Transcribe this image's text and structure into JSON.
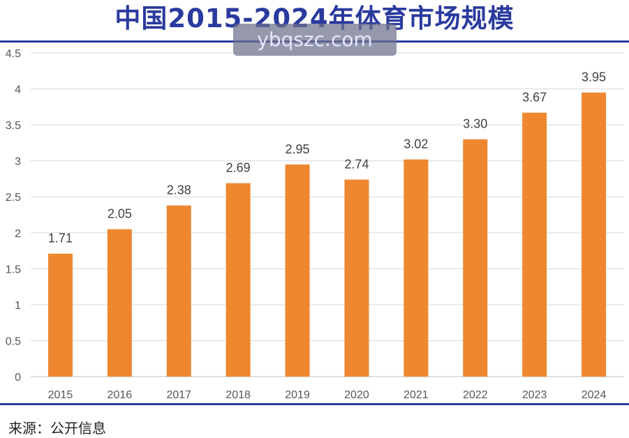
{
  "header": {
    "title": "中国2015-2024年体育市场规模",
    "watermark": "ybqszc.com"
  },
  "footer": {
    "source": "来源：公开信息"
  },
  "colors": {
    "bar": "#ee8730",
    "title": "#2a3a9e",
    "grid": "#d9d9d9"
  },
  "chart_data": {
    "type": "bar",
    "title": "中国2015-2024年体育市场规模",
    "xlabel": "",
    "ylabel": "",
    "categories": [
      "2015",
      "2016",
      "2017",
      "2018",
      "2019",
      "2020",
      "2021",
      "2022",
      "2023",
      "2024"
    ],
    "values": [
      1.71,
      2.05,
      2.38,
      2.69,
      2.95,
      2.74,
      3.02,
      3.3,
      3.67,
      3.95
    ],
    "value_labels": [
      "1.71",
      "2.05",
      "2.38",
      "2.69",
      "2.95",
      "2.74",
      "3.02",
      "3.30",
      "3.67",
      "3.95"
    ],
    "ylim": [
      0,
      4.5
    ],
    "yticks": [
      "0",
      "0.5",
      "1",
      "1.5",
      "2",
      "2.5",
      "3",
      "3.5",
      "4",
      "4.5"
    ],
    "ytick_values": [
      0,
      0.5,
      1,
      1.5,
      2,
      2.5,
      3,
      3.5,
      4,
      4.5
    ],
    "grid": true,
    "legend": "none"
  }
}
